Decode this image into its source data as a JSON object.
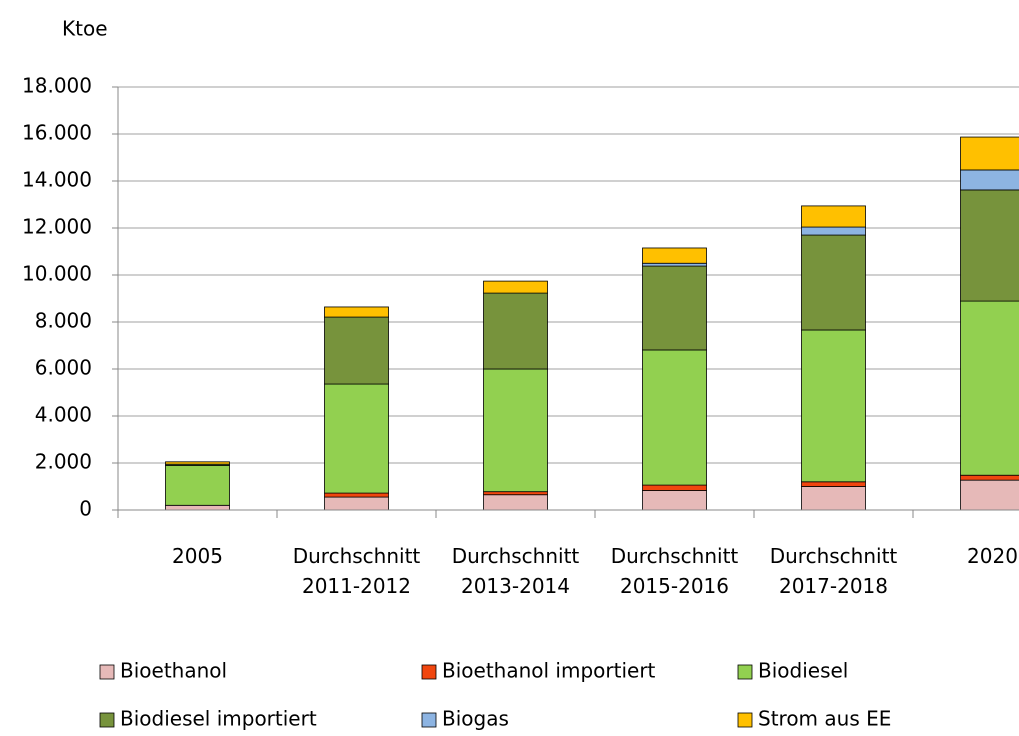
{
  "chart_data": {
    "type": "stacked_bar",
    "y_label": "Ktoe",
    "categories": [
      "2005",
      "Durchschnitt 2011-2012",
      "Durchschnitt 2013-2014",
      "Durchschnitt 2015-2016",
      "Durchschnitt 2017-2018",
      "2020"
    ],
    "series": [
      {
        "name": "Bioethanol",
        "color": "#e6b9b8",
        "values": [
          200,
          550,
          650,
          830,
          1000,
          1270
        ]
      },
      {
        "name": "Bioethanol importiert",
        "color": "#f0460f",
        "values": [
          0,
          170,
          130,
          230,
          200,
          210
        ]
      },
      {
        "name": "Biodiesel",
        "color": "#92d050",
        "values": [
          1700,
          4640,
          5220,
          5750,
          6460,
          7410
        ]
      },
      {
        "name": "Biodiesel importiert",
        "color": "#77933c",
        "values": [
          50,
          2850,
          3230,
          3570,
          4040,
          4730
        ]
      },
      {
        "name": "Biogas",
        "color": "#8db4e2",
        "values": [
          0,
          0,
          0,
          120,
          340,
          850
        ]
      },
      {
        "name": "Strom aus EE",
        "color": "#ffc000",
        "values": [
          100,
          430,
          510,
          650,
          900,
          1400
        ]
      }
    ],
    "ylim": [
      0,
      18000
    ],
    "yticks": [
      0,
      {
        "value": 2000,
        "label": "2.000"
      },
      {
        "value": 4000,
        "label": "4.000"
      },
      {
        "value": 6000,
        "label": "6.000"
      },
      {
        "value": 8000,
        "label": "8.000"
      },
      {
        "value": 10000,
        "label": "10.000"
      },
      {
        "value": 12000,
        "label": "12.000"
      },
      {
        "value": 14000,
        "label": "14.000"
      },
      {
        "value": 16000,
        "label": "16.000"
      },
      {
        "value": 18000,
        "label": "18.000"
      }
    ],
    "grid": true
  }
}
